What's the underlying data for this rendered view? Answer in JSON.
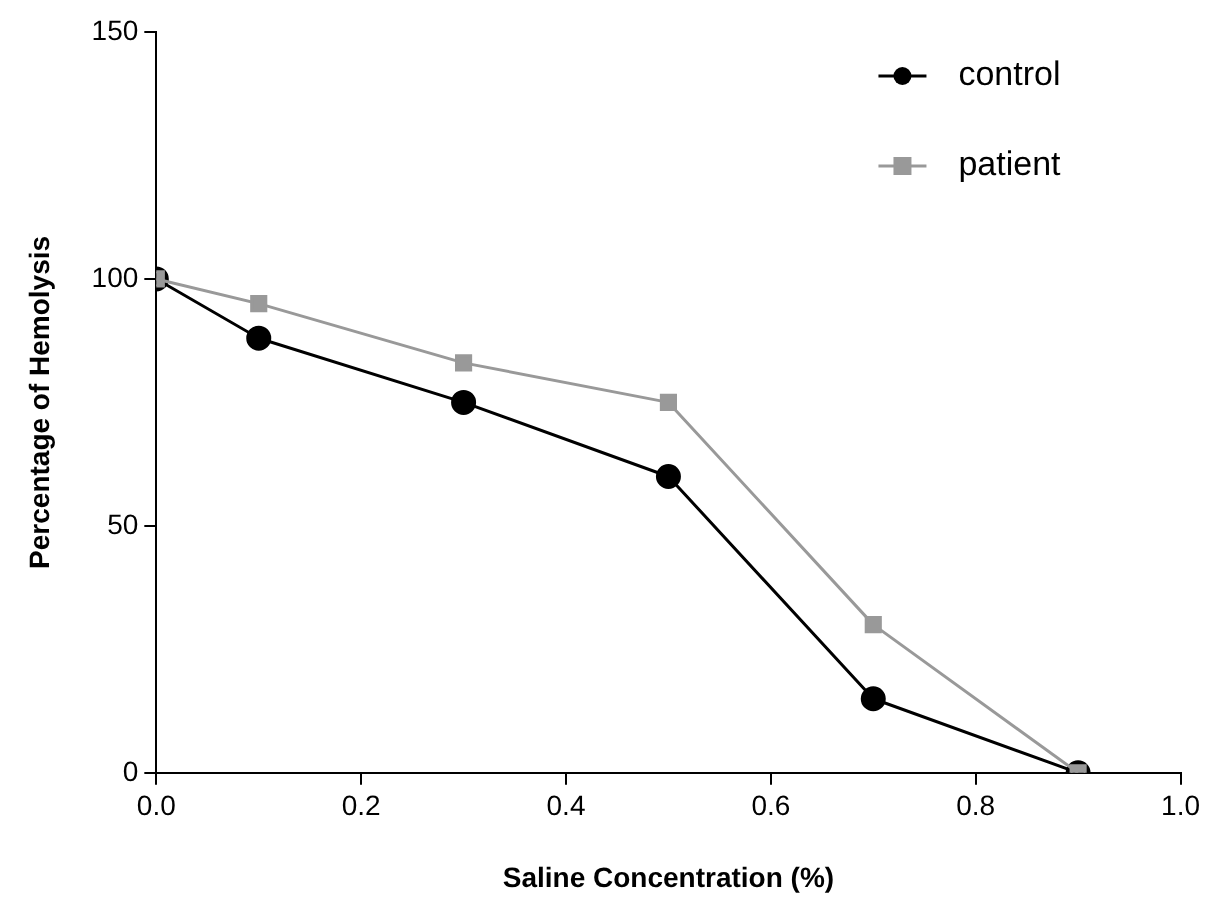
{
  "chart_data": {
    "type": "line",
    "xlabel": "Saline Concentration (%)",
    "ylabel": "Percentage of Hemolysis",
    "x": [
      0,
      0.1,
      0.3,
      0.5,
      0.7,
      0.9
    ],
    "series": [
      {
        "name": "control",
        "color": "#000000",
        "values": [
          100,
          88,
          75,
          60,
          15,
          0
        ],
        "marker": "circle"
      },
      {
        "name": "patient",
        "color": "#999999",
        "values": [
          100,
          95,
          83,
          75,
          30,
          0
        ],
        "marker": "square"
      }
    ],
    "xlim": [
      0,
      1
    ],
    "xticks": [
      {
        "value": 0,
        "label": "0.0"
      },
      {
        "value": 0.2,
        "label": "0.2"
      },
      {
        "value": 0.4,
        "label": "0.4"
      },
      {
        "value": 0.6,
        "label": "0.6"
      },
      {
        "value": 0.8,
        "label": "0.8"
      },
      {
        "value": 1,
        "label": "1.0"
      }
    ],
    "ylim": [
      0,
      150
    ],
    "yticks": [
      0,
      50,
      100,
      150
    ],
    "grid": false,
    "legend": "top right",
    "line_style": "solid"
  }
}
